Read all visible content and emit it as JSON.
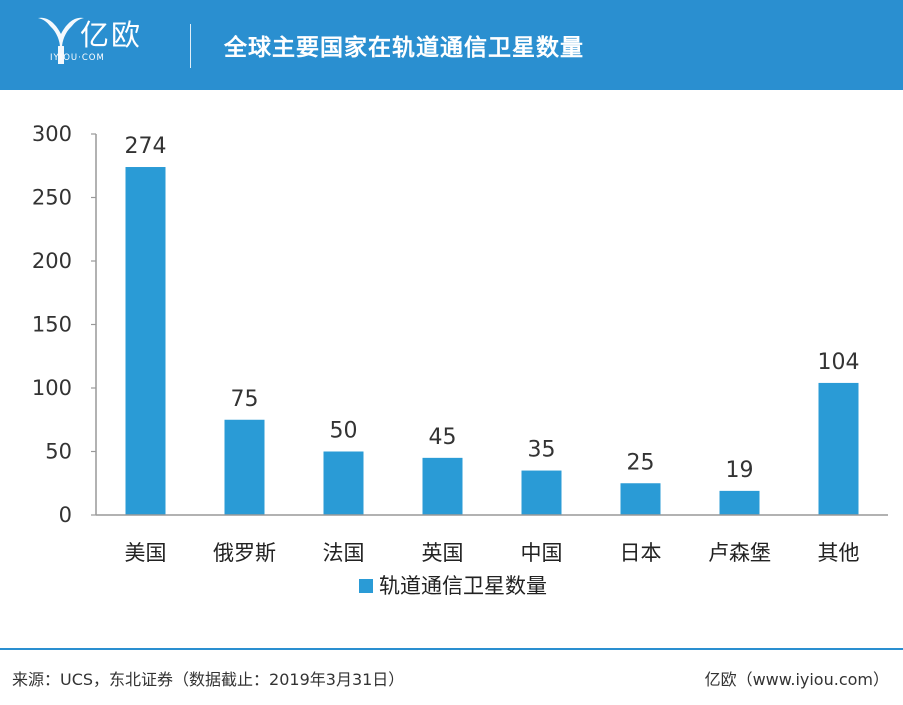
{
  "header": {
    "brand": "亿欧",
    "brand_sub": "IYIOU·COM",
    "title": "全球主要国家在轨道通信卫星数量",
    "background_color": "#2a8fd0"
  },
  "chart_data": {
    "type": "bar",
    "categories": [
      "美国",
      "俄罗斯",
      "法国",
      "英国",
      "中国",
      "日本",
      "卢森堡",
      "其他"
    ],
    "series": [
      {
        "name": "轨道通信卫星数量",
        "values": [
          274,
          75,
          50,
          45,
          35,
          25,
          19,
          104
        ],
        "color": "#2a9bd6"
      }
    ],
    "ylim": [
      0,
      300
    ],
    "yticks": [
      0,
      50,
      100,
      150,
      200,
      250,
      300
    ],
    "grid": false,
    "legend": "bottom",
    "data_labels": true
  },
  "footer": {
    "source": "来源：UCS，东北证券（数据截止：2019年3月31日）",
    "credit": "亿欧（www.iyiou.com）",
    "line_color": "#2a8fd0"
  }
}
